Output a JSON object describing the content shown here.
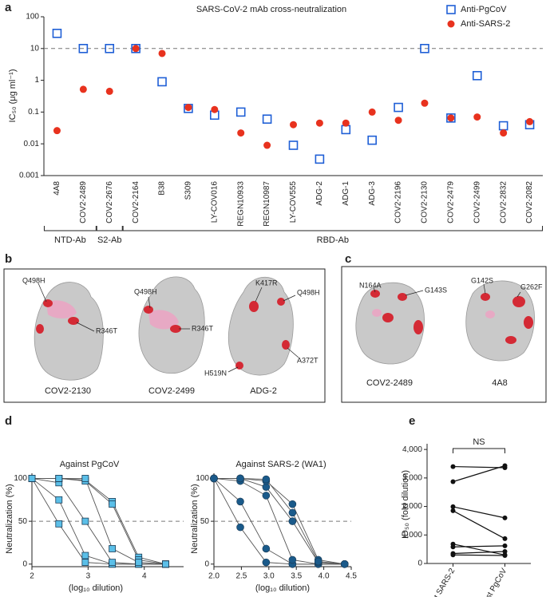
{
  "chart_data": [
    {
      "letter": "a",
      "type": "dot",
      "title": "SARS-CoV-2 mAb cross-neutralization",
      "ylabel": "IC₅₀ (μg ml⁻¹)",
      "categories": [
        "4A8",
        "COV2-2489",
        "COV2-2676",
        "COV2-2164",
        "B38",
        "S309",
        "LY-COV016",
        "REGN10933",
        "REGN10987",
        "LY-COV555",
        "ADG-2",
        "ADG-1",
        "ADG-3",
        "COV2-2196",
        "COV2-2130",
        "COV2-2479",
        "COV2-2499",
        "COV2-2832",
        "COV2-2082"
      ],
      "series": [
        {
          "name": "Anti-PgCoV",
          "color": "#1f5fd6",
          "marker": "open-square",
          "values": [
            30,
            10,
            10,
            10,
            0.9,
            0.13,
            0.08,
            0.1,
            0.06,
            0.009,
            0.0033,
            0.028,
            0.013,
            0.14,
            10,
            0.065,
            1.4,
            0.037,
            0.04
          ]
        },
        {
          "name": "Anti-SARS-2",
          "color": "#e8321e",
          "marker": "circle",
          "values": [
            0.026,
            0.52,
            0.45,
            10,
            7,
            0.14,
            0.12,
            0.022,
            0.009,
            0.04,
            0.045,
            0.045,
            0.1,
            0.055,
            0.19,
            0.065,
            0.07,
            0.022,
            0.05
          ]
        }
      ],
      "ylim": [
        0.001,
        100
      ],
      "yticks": [
        0.001,
        0.01,
        0.1,
        1,
        10,
        100
      ],
      "log_scale": true,
      "reference_line": 10,
      "legend": "top-right",
      "groups": [
        {
          "label": "NTD-Ab",
          "from": "4A8",
          "to": "COV2-2489"
        },
        {
          "label": "S2-Ab",
          "from": "COV2-2676",
          "to": "COV2-2676"
        },
        {
          "label": "RBD-Ab",
          "from": "COV2-2164",
          "to": "COV2-2082"
        }
      ]
    },
    {
      "letter": "d",
      "type": "line",
      "title": "Against PgCoV",
      "ylabel": "Neutralization (%)",
      "xlabel": "(log₁₀ dilution)",
      "x": [
        2,
        2.48,
        2.95,
        3.43,
        3.9,
        4.38
      ],
      "xlim": [
        2,
        4.7
      ],
      "xticks": [
        2,
        3,
        4
      ],
      "ylim": [
        -3,
        106
      ],
      "yticks": [
        0,
        50,
        100
      ],
      "reference_line": 50,
      "marker": "square",
      "color": "#5bbfe8",
      "curve_color": "#555555",
      "series": [
        {
          "values": [
            100,
            47,
            2,
            0,
            0,
            0
          ]
        },
        {
          "values": [
            100,
            75,
            10,
            0,
            0,
            0
          ]
        },
        {
          "values": [
            100,
            95,
            50,
            2,
            0,
            0
          ]
        },
        {
          "values": [
            100,
            100,
            98,
            73,
            8,
            0
          ]
        },
        {
          "values": [
            100,
            100,
            97,
            70,
            5,
            0
          ]
        },
        {
          "values": [
            100,
            100,
            100,
            18,
            2,
            0
          ]
        }
      ]
    },
    {
      "type": "line",
      "title": "Against SARS-2 (WA1)",
      "ylabel": "Neutralization (%)",
      "xlabel": "(log₁₀ dilution)",
      "x": [
        2,
        2.48,
        2.95,
        3.43,
        3.9,
        4.38
      ],
      "xlim": [
        2,
        4.5
      ],
      "xticks": [
        {
          "value": 2,
          "label": "2.0"
        },
        {
          "value": 2.5,
          "label": "2.5"
        },
        {
          "value": 3,
          "label": "3.0"
        },
        {
          "value": 3.5,
          "label": "3.5"
        },
        {
          "value": 4,
          "label": "4.0"
        },
        {
          "value": 4.5,
          "label": "4.5"
        }
      ],
      "ylim": [
        -3,
        106
      ],
      "yticks": [
        0,
        50,
        100
      ],
      "reference_line": 50,
      "marker": "circle",
      "color": "#1a5a8a",
      "curve_color": "#555555",
      "series": [
        {
          "values": [
            100,
            43,
            2,
            0,
            0,
            0
          ]
        },
        {
          "values": [
            100,
            73,
            18,
            0,
            0,
            0
          ]
        },
        {
          "values": [
            100,
            97,
            80,
            5,
            0,
            0
          ]
        },
        {
          "values": [
            100,
            100,
            90,
            50,
            2,
            0
          ]
        },
        {
          "values": [
            100,
            100,
            97,
            70,
            5,
            0
          ]
        },
        {
          "values": [
            100,
            100,
            99,
            60,
            3,
            0
          ]
        }
      ]
    },
    {
      "letter": "e",
      "type": "paired",
      "ylabel": "ID₅₀ (fold dilution)",
      "categories": [
        "Against SARS-2",
        "Against PgCoV"
      ],
      "ylim": [
        0,
        4200
      ],
      "yticks": [
        0,
        {
          "value": 1000,
          "label": "1,000"
        },
        {
          "value": 2000,
          "label": "2,000"
        },
        {
          "value": 3000,
          "label": "3,000"
        },
        {
          "value": 4000,
          "label": "4,000"
        }
      ],
      "color": "#111111",
      "annotation": "NS",
      "series": [
        {
          "values": [
            3400,
            3360
          ]
        },
        {
          "values": [
            2870,
            3430
          ]
        },
        {
          "values": [
            1990,
            1600
          ]
        },
        {
          "values": [
            1850,
            870
          ]
        },
        {
          "values": [
            680,
            300
          ]
        },
        {
          "values": [
            580,
            620
          ]
        },
        {
          "values": [
            350,
            420
          ]
        },
        {
          "values": [
            300,
            280
          ]
        }
      ]
    }
  ],
  "panels": [
    {
      "letter": "b",
      "structures": [
        {
          "name": "COV2-2130",
          "mutations": [
            "Q498H",
            "R346T"
          ]
        },
        {
          "name": "COV2-2499",
          "mutations": [
            "Q498H",
            "R346T"
          ]
        },
        {
          "name": "ADG-2",
          "mutations": [
            "K417R",
            "Q498H",
            "H519N",
            "A372T"
          ]
        }
      ]
    },
    {
      "letter": "c",
      "structures": [
        {
          "name": "COV2-2489",
          "mutations": [
            "N164A",
            "G143S"
          ]
        },
        {
          "name": "4A8",
          "mutations": [
            "G142S",
            "G262F"
          ]
        }
      ]
    }
  ]
}
